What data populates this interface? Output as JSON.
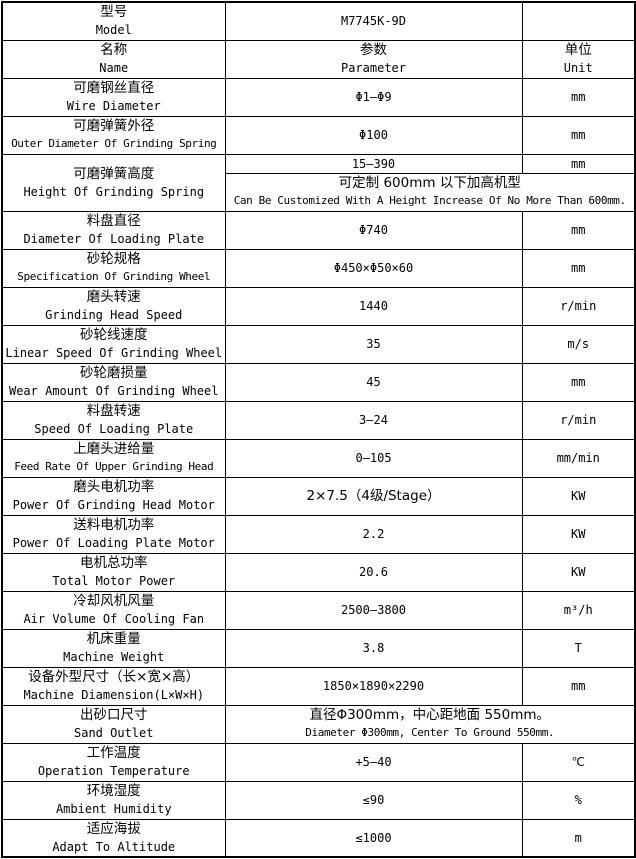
{
  "page": {
    "background_color": "#ffffff",
    "border_color": "#000000",
    "text_color": "#000000"
  },
  "table": {
    "columns": [
      "name",
      "parameter",
      "unit"
    ],
    "rows": [
      {
        "name": [
          "型号",
          "Model"
        ],
        "param": [
          "M7745K-9D"
        ],
        "unit": [
          ""
        ]
      },
      {
        "name": [
          "名称",
          "Name"
        ],
        "param": [
          "参数",
          "Parameter"
        ],
        "unit": [
          "单位",
          "Unit"
        ]
      },
      {
        "name": [
          "可磨钢丝直径",
          "Wire Diameter"
        ],
        "param": [
          "Φ1—Φ9"
        ],
        "unit": [
          "mm"
        ]
      },
      {
        "name": [
          "可磨弹簧外径",
          "Outer Diameter Of Grinding Spring"
        ],
        "param": [
          "Φ100"
        ],
        "unit": [
          "mm"
        ]
      },
      {
        "type": "split",
        "name": [
          "可磨弹簧高度",
          "Height Of Grinding Spring"
        ],
        "param": [
          "15—390"
        ],
        "unit": [
          "mm"
        ],
        "span": [
          "可定制 600mm 以下加高机型",
          "Can Be Customized With A Height Increase Of No More Than 600mm."
        ]
      },
      {
        "name": [
          "料盘直径",
          "Diameter Of Loading Plate"
        ],
        "param": [
          "Φ740"
        ],
        "unit": [
          "mm"
        ]
      },
      {
        "name": [
          "砂轮规格",
          "Specification Of Grinding Wheel"
        ],
        "param": [
          "Φ450×Φ50×60"
        ],
        "unit": [
          "mm"
        ]
      },
      {
        "name": [
          "磨头转速",
          "Grinding Head Speed"
        ],
        "param": [
          "1440"
        ],
        "unit": [
          "r/min"
        ]
      },
      {
        "name": [
          "砂轮线速度",
          "Linear Speed Of Grinding Wheel"
        ],
        "param": [
          "35"
        ],
        "unit": [
          "m/s"
        ]
      },
      {
        "name": [
          "砂轮磨损量",
          "Wear Amount Of Grinding Wheel"
        ],
        "param": [
          "45"
        ],
        "unit": [
          "mm"
        ]
      },
      {
        "name": [
          "料盘转速",
          "Speed Of Loading Plate"
        ],
        "param": [
          "3—24"
        ],
        "unit": [
          "r/min"
        ]
      },
      {
        "name": [
          "上磨头进给量",
          "Feed Rate Of Upper Grinding Head"
        ],
        "param": [
          "0—105"
        ],
        "unit": [
          "mm/min"
        ]
      },
      {
        "name": [
          "磨头电机功率",
          "Power Of Grinding Head Motor"
        ],
        "param": [
          "2×7.5（4级/Stage）"
        ],
        "unit": [
          "KW"
        ]
      },
      {
        "name": [
          "送料电机功率",
          "Power Of Loading Plate Motor"
        ],
        "param": [
          "2.2"
        ],
        "unit": [
          "KW"
        ]
      },
      {
        "name": [
          "电机总功率",
          "Total Motor Power"
        ],
        "param": [
          "20.6"
        ],
        "unit": [
          "KW"
        ]
      },
      {
        "name": [
          "冷却风机风量",
          "Air Volume Of Cooling Fan"
        ],
        "param": [
          "2500—3800"
        ],
        "unit": [
          "m³/h"
        ]
      },
      {
        "name": [
          "机床重量",
          "Machine Weight"
        ],
        "param": [
          "3.8"
        ],
        "unit": [
          "T"
        ]
      },
      {
        "name": [
          "设备外型尺寸（长×宽×高）",
          "Machine Diamension(L×W×H)"
        ],
        "param": [
          "1850×1890×2290"
        ],
        "unit": [
          "mm"
        ]
      },
      {
        "type": "span",
        "name": [
          "出砂口尺寸",
          "Sand Outlet"
        ],
        "span": [
          "直径Φ300mm，中心距地面 550mm。",
          "Diameter Φ300mm, Center To Ground 550mm."
        ]
      },
      {
        "name": [
          "工作温度",
          "Operation Temperature"
        ],
        "param": [
          "+5—40"
        ],
        "unit": [
          "℃"
        ]
      },
      {
        "name": [
          "环境湿度",
          "Ambient Humidity"
        ],
        "param": [
          "≤90"
        ],
        "unit": [
          "%"
        ]
      },
      {
        "name": [
          "适应海拔",
          "Adapt To Altitude"
        ],
        "param": [
          "≤1000"
        ],
        "unit": [
          "m"
        ]
      }
    ]
  }
}
